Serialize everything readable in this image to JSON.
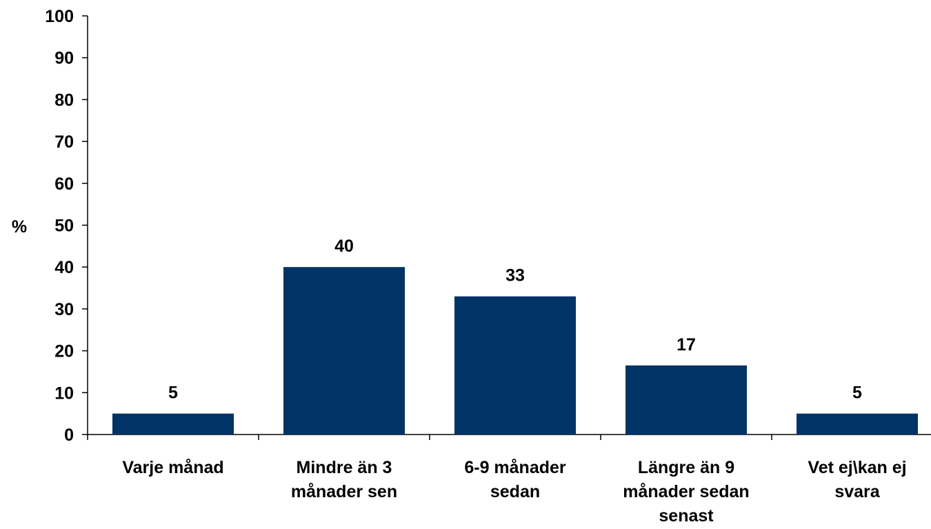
{
  "chart_data": {
    "type": "bar",
    "title": "",
    "xlabel": "",
    "ylabel": "%",
    "ylim": [
      0,
      100
    ],
    "yticks": [
      "0",
      "10",
      "20",
      "30",
      "40",
      "50",
      "60",
      "70",
      "80",
      "90",
      "100"
    ],
    "categories": [
      [
        "Varje månad"
      ],
      [
        "Mindre än 3",
        "månader sen"
      ],
      [
        "6-9 månader",
        "sedan"
      ],
      [
        "Längre än 9",
        "månader sedan",
        "senast"
      ],
      [
        "Vet ej\\kan ej",
        "svara"
      ]
    ],
    "values": [
      5,
      40,
      33,
      16.5,
      5
    ],
    "data_labels": [
      "5",
      "40",
      "33",
      "17",
      "5"
    ],
    "grid": false,
    "legend": "none",
    "bar_color": "#003366"
  }
}
